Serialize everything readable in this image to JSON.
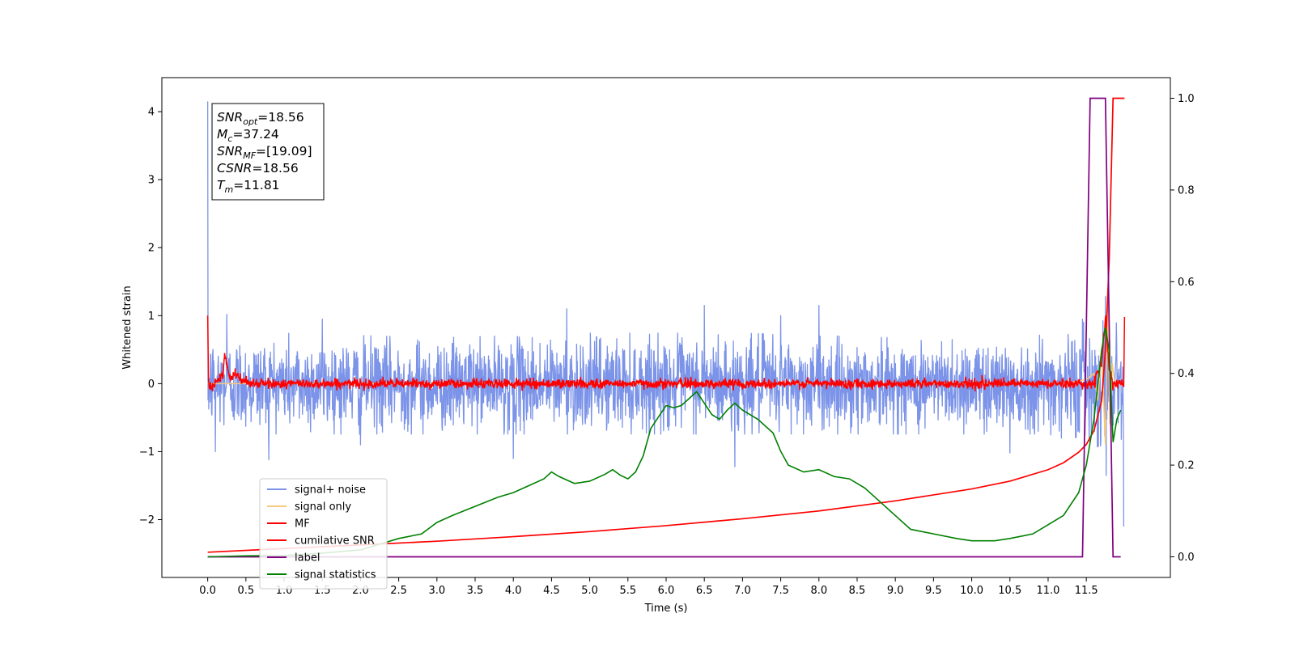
{
  "chart_data": {
    "type": "line",
    "title": "",
    "xlabel": "Time (s)",
    "ylabel": "Whitened strain",
    "ylabel_right": "",
    "xlim": [
      -0.6,
      12.6
    ],
    "ylim": [
      -2.85,
      4.5
    ],
    "ylim_right": [
      -0.045,
      1.045
    ],
    "x_ticks": [
      0.0,
      0.5,
      1.0,
      1.5,
      2.0,
      2.5,
      3.0,
      3.5,
      4.0,
      4.5,
      5.0,
      5.5,
      6.0,
      6.5,
      7.0,
      7.5,
      8.0,
      8.5,
      9.0,
      9.5,
      10.0,
      10.5,
      11.0,
      11.5
    ],
    "x_tick_labels": [
      "0.0",
      "0.5",
      "1.0",
      "1.5",
      "2.0",
      "2.5",
      "3.0",
      "3.5",
      "4.0",
      "4.5",
      "5.0",
      "5.5",
      "6.0",
      "6.5",
      "7.0",
      "7.5",
      "8.0",
      "8.5",
      "9.0",
      "9.5",
      "10.0",
      "10.5",
      "11.0",
      "11.5"
    ],
    "y_ticks": [
      -2,
      -1,
      0,
      1,
      2,
      3,
      4
    ],
    "y_tick_labels": [
      "−2",
      "−1",
      "0",
      "1",
      "2",
      "3",
      "4"
    ],
    "y_ticks_right": [
      0.0,
      0.2,
      0.4,
      0.6,
      0.8,
      1.0
    ],
    "y_tick_labels_right": [
      "0.0",
      "0.2",
      "0.4",
      "0.6",
      "0.8",
      "1.0"
    ],
    "grid": false,
    "legend_placement": "lower-left",
    "annotation": [
      {
        "symbol": "SNR",
        "sub": "opt",
        "value": "=18.56"
      },
      {
        "symbol": "M",
        "sub": "c",
        "value": "=37.24"
      },
      {
        "symbol": "SNR",
        "sub": "MF",
        "value": "=[19.09]"
      },
      {
        "symbol": "CSNR",
        "sub": "",
        "value": "=18.56"
      },
      {
        "symbol": "T",
        "sub": "m",
        "value": "=11.81"
      }
    ],
    "series": [
      {
        "name": "signal+ noise",
        "axis": "left",
        "color": "#7b93e8",
        "x_range": [
          0.0,
          11.99
        ],
        "envelope": {
          "x": [
            0.0,
            1.0,
            3.0,
            5.0,
            7.0,
            9.0,
            11.0,
            11.6,
            11.99
          ],
          "upper": [
            0.55,
            0.55,
            0.5,
            0.55,
            0.55,
            0.5,
            0.55,
            0.7,
            0.65
          ],
          "lower": [
            -0.55,
            -0.55,
            -0.55,
            -0.55,
            -0.55,
            -0.55,
            -0.55,
            -0.7,
            -0.6
          ]
        },
        "peaks": [
          [
            0.0,
            4.15
          ],
          [
            0.1,
            -1.0
          ],
          [
            0.25,
            1.02
          ],
          [
            0.8,
            -1.12
          ],
          [
            1.5,
            0.95
          ],
          [
            2.0,
            -0.9
          ],
          [
            4.0,
            -1.1
          ],
          [
            4.7,
            1.1
          ],
          [
            6.5,
            1.15
          ],
          [
            6.9,
            -1.22
          ],
          [
            7.5,
            1.0
          ],
          [
            8.0,
            1.15
          ],
          [
            10.5,
            -1.02
          ],
          [
            11.45,
            0.95
          ],
          [
            11.75,
            1.28
          ],
          [
            11.76,
            -1.35
          ],
          [
            11.99,
            -2.1
          ]
        ]
      },
      {
        "name": "signal only",
        "axis": "left",
        "color": "#f7c97e",
        "x": [
          0.0,
          11.0,
          11.3,
          11.5,
          11.6,
          11.65,
          11.7,
          11.75,
          11.78,
          11.81,
          11.84,
          11.88,
          11.92,
          11.99
        ],
        "y": [
          0.0,
          0.0,
          0.02,
          0.06,
          0.15,
          -0.25,
          0.5,
          -0.9,
          1.25,
          -0.6,
          0.3,
          -0.05,
          0.0,
          0.0
        ]
      },
      {
        "name": "MF",
        "axis": "left",
        "color": "#ff0000",
        "x": [
          0.0,
          0.01,
          0.05,
          0.12,
          0.2,
          0.22,
          0.26,
          0.3,
          0.35,
          0.45,
          0.6,
          2.5,
          9.0,
          11.5,
          11.6,
          11.7,
          11.75,
          11.8,
          11.85,
          11.9,
          11.99,
          12.0
        ],
        "y": [
          1.0,
          0.05,
          -0.05,
          0.05,
          0.1,
          0.45,
          0.2,
          0.05,
          0.15,
          0.05,
          0.0,
          0.0,
          0.0,
          0.0,
          0.0,
          0.3,
          1.0,
          0.2,
          -0.05,
          0.0,
          0.0,
          0.95
        ]
      },
      {
        "name": "cumilative SNR",
        "axis": "right",
        "color": "#ff0000",
        "x": [
          0.0,
          1.0,
          2.0,
          3.0,
          4.0,
          5.0,
          6.0,
          7.0,
          8.0,
          9.0,
          10.0,
          10.5,
          11.0,
          11.2,
          11.4,
          11.5,
          11.6,
          11.7,
          11.75,
          11.8,
          11.85,
          11.9,
          12.0
        ],
        "y": [
          0.01,
          0.018,
          0.026,
          0.034,
          0.044,
          0.055,
          0.068,
          0.083,
          0.1,
          0.122,
          0.148,
          0.165,
          0.19,
          0.205,
          0.228,
          0.245,
          0.275,
          0.34,
          0.45,
          0.65,
          1.0,
          1.0,
          1.0
        ]
      },
      {
        "name": "label",
        "axis": "right",
        "color": "#800080",
        "x": [
          0.0,
          11.45,
          11.55,
          11.75,
          11.85,
          11.95
        ],
        "y": [
          0.0,
          0.0,
          1.0,
          1.0,
          0.0,
          0.0
        ]
      },
      {
        "name": "signal statistics",
        "axis": "right",
        "color": "#008000",
        "x": [
          0.0,
          0.5,
          1.0,
          1.5,
          2.0,
          2.5,
          2.8,
          3.0,
          3.2,
          3.5,
          3.8,
          4.0,
          4.2,
          4.4,
          4.5,
          4.6,
          4.8,
          5.0,
          5.2,
          5.3,
          5.4,
          5.5,
          5.6,
          5.7,
          5.8,
          6.0,
          6.1,
          6.2,
          6.3,
          6.4,
          6.5,
          6.6,
          6.7,
          6.8,
          6.9,
          7.0,
          7.2,
          7.4,
          7.5,
          7.6,
          7.8,
          8.0,
          8.2,
          8.4,
          8.6,
          8.8,
          9.0,
          9.2,
          9.5,
          9.8,
          10.0,
          10.3,
          10.5,
          10.8,
          11.0,
          11.2,
          11.4,
          11.5,
          11.6,
          11.7,
          11.75,
          11.8,
          11.85,
          11.9,
          11.95
        ],
        "y": [
          0.0,
          0.002,
          0.003,
          0.008,
          0.015,
          0.04,
          0.05,
          0.075,
          0.09,
          0.11,
          0.13,
          0.14,
          0.155,
          0.17,
          0.185,
          0.175,
          0.16,
          0.165,
          0.18,
          0.19,
          0.178,
          0.17,
          0.185,
          0.22,
          0.28,
          0.33,
          0.325,
          0.33,
          0.345,
          0.36,
          0.335,
          0.31,
          0.3,
          0.32,
          0.335,
          0.32,
          0.3,
          0.27,
          0.23,
          0.2,
          0.185,
          0.19,
          0.175,
          0.17,
          0.15,
          0.12,
          0.09,
          0.06,
          0.05,
          0.04,
          0.035,
          0.035,
          0.04,
          0.05,
          0.07,
          0.09,
          0.14,
          0.2,
          0.3,
          0.45,
          0.5,
          0.45,
          0.25,
          0.3,
          0.32
        ]
      }
    ]
  }
}
